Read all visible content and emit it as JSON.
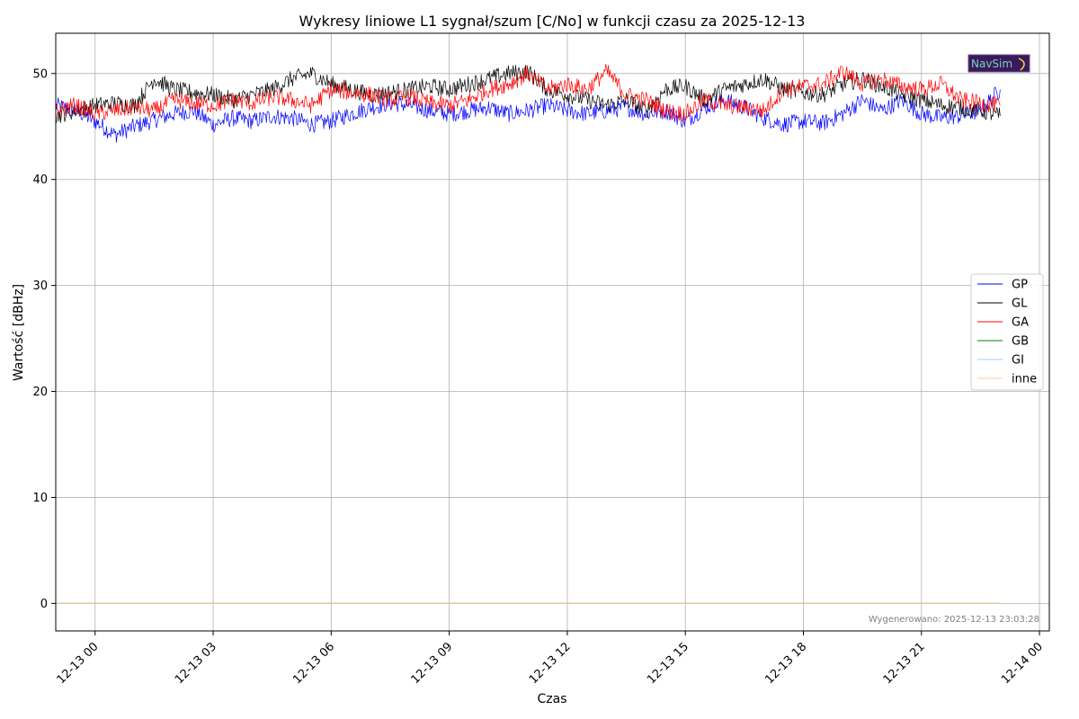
{
  "chart_data": {
    "type": "line",
    "title": "Wykresy liniowe L1 sygnał/szum [C/No] w funkcji czasu za 2025-12-13",
    "xlabel": "Czas",
    "ylabel": "Wartość [dBHz]",
    "x_ticks": [
      "12-13 00",
      "12-13 03",
      "12-13 06",
      "12-13 09",
      "12-13 12",
      "12-13 15",
      "12-13 18",
      "12-13 21",
      "12-14 00"
    ],
    "x_range": [
      "2025-12-12 23:00",
      "2025-12-14 00:15"
    ],
    "y_ticks": [
      0,
      10,
      20,
      30,
      40,
      50
    ],
    "ylim": [
      -2.6,
      53.8
    ],
    "grid": true,
    "legend_position": "center-right",
    "series": [
      {
        "name": "GP",
        "color": "#0000ff",
        "x": [
          "2025-12-12 23:00",
          "2025-12-12 23:30",
          "2025-12-13 00:00",
          "2025-12-13 00:30",
          "2025-12-13 01:00",
          "2025-12-13 01:30",
          "2025-12-13 02:00",
          "2025-12-13 02:30",
          "2025-12-13 03:00",
          "2025-12-13 03:30",
          "2025-12-13 04:00",
          "2025-12-13 04:30",
          "2025-12-13 05:00",
          "2025-12-13 05:30",
          "2025-12-13 06:00",
          "2025-12-13 06:30",
          "2025-12-13 07:00",
          "2025-12-13 07:30",
          "2025-12-13 08:00",
          "2025-12-13 08:30",
          "2025-12-13 09:00",
          "2025-12-13 09:30",
          "2025-12-13 10:00",
          "2025-12-13 10:30",
          "2025-12-13 11:00",
          "2025-12-13 11:30",
          "2025-12-13 12:00",
          "2025-12-13 12:30",
          "2025-12-13 13:00",
          "2025-12-13 13:30",
          "2025-12-13 14:00",
          "2025-12-13 14:30",
          "2025-12-13 15:00",
          "2025-12-13 15:30",
          "2025-12-13 16:00",
          "2025-12-13 16:30",
          "2025-12-13 17:00",
          "2025-12-13 17:30",
          "2025-12-13 18:00",
          "2025-12-13 18:30",
          "2025-12-13 19:00",
          "2025-12-13 19:30",
          "2025-12-13 20:00",
          "2025-12-13 20:30",
          "2025-12-13 21:00",
          "2025-12-13 21:30",
          "2025-12-13 22:00",
          "2025-12-13 22:30",
          "2025-12-13 23:00"
        ],
        "values": [
          47.0,
          46.5,
          45.5,
          44.2,
          45.0,
          45.6,
          46.2,
          46.5,
          45.2,
          45.8,
          45.5,
          46.0,
          45.8,
          45.2,
          45.5,
          46.2,
          46.8,
          47.2,
          47.0,
          46.5,
          46.2,
          46.5,
          46.8,
          46.2,
          46.5,
          47.0,
          46.5,
          46.2,
          46.5,
          46.8,
          46.2,
          46.5,
          45.5,
          46.8,
          47.5,
          46.8,
          45.8,
          45.2,
          45.5,
          45.3,
          46.2,
          47.5,
          46.5,
          47.5,
          46.2,
          45.8,
          46.0,
          46.5,
          48.5
        ]
      },
      {
        "name": "GL",
        "color": "#000000",
        "x": [
          "2025-12-12 23:00",
          "2025-12-12 23:30",
          "2025-12-13 00:00",
          "2025-12-13 00:30",
          "2025-12-13 01:00",
          "2025-12-13 01:30",
          "2025-12-13 02:00",
          "2025-12-13 02:30",
          "2025-12-13 03:00",
          "2025-12-13 03:30",
          "2025-12-13 04:00",
          "2025-12-13 04:30",
          "2025-12-13 05:00",
          "2025-12-13 05:30",
          "2025-12-13 06:00",
          "2025-12-13 06:30",
          "2025-12-13 07:00",
          "2025-12-13 07:30",
          "2025-12-13 08:00",
          "2025-12-13 08:30",
          "2025-12-13 09:00",
          "2025-12-13 09:30",
          "2025-12-13 10:00",
          "2025-12-13 10:30",
          "2025-12-13 11:00",
          "2025-12-13 11:30",
          "2025-12-13 12:00",
          "2025-12-13 12:30",
          "2025-12-13 13:00",
          "2025-12-13 13:30",
          "2025-12-13 14:00",
          "2025-12-13 14:30",
          "2025-12-13 15:00",
          "2025-12-13 15:30",
          "2025-12-13 16:00",
          "2025-12-13 16:30",
          "2025-12-13 17:00",
          "2025-12-13 17:30",
          "2025-12-13 18:00",
          "2025-12-13 18:30",
          "2025-12-13 19:00",
          "2025-12-13 19:30",
          "2025-12-13 20:00",
          "2025-12-13 20:30",
          "2025-12-13 21:00",
          "2025-12-13 21:30",
          "2025-12-13 22:00",
          "2025-12-13 22:30",
          "2025-12-13 23:00"
        ],
        "values": [
          46.0,
          46.5,
          47.0,
          47.2,
          47.0,
          49.5,
          48.5,
          48.2,
          48.0,
          47.5,
          48.0,
          48.5,
          49.5,
          50.0,
          49.0,
          48.5,
          48.0,
          48.2,
          48.5,
          48.8,
          48.5,
          49.0,
          49.5,
          50.0,
          50.2,
          48.5,
          48.0,
          47.5,
          47.0,
          47.5,
          46.5,
          48.5,
          48.8,
          47.5,
          48.5,
          49.0,
          49.5,
          48.5,
          48.2,
          48.0,
          49.0,
          49.5,
          48.8,
          48.0,
          47.5,
          47.0,
          46.8,
          46.5,
          46.0
        ]
      },
      {
        "name": "GA",
        "color": "#ff0000",
        "x": [
          "2025-12-12 23:00",
          "2025-12-12 23:30",
          "2025-12-13 00:00",
          "2025-12-13 00:30",
          "2025-12-13 01:00",
          "2025-12-13 01:30",
          "2025-12-13 02:00",
          "2025-12-13 02:30",
          "2025-12-13 03:00",
          "2025-12-13 03:30",
          "2025-12-13 04:00",
          "2025-12-13 04:30",
          "2025-12-13 05:00",
          "2025-12-13 05:30",
          "2025-12-13 06:00",
          "2025-12-13 06:30",
          "2025-12-13 07:00",
          "2025-12-13 07:30",
          "2025-12-13 08:00",
          "2025-12-13 08:30",
          "2025-12-13 09:00",
          "2025-12-13 09:30",
          "2025-12-13 10:00",
          "2025-12-13 10:30",
          "2025-12-13 11:00",
          "2025-12-13 11:30",
          "2025-12-13 12:00",
          "2025-12-13 12:30",
          "2025-12-13 13:00",
          "2025-12-13 13:30",
          "2025-12-13 14:00",
          "2025-12-13 14:30",
          "2025-12-13 15:00",
          "2025-12-13 15:30",
          "2025-12-13 16:00",
          "2025-12-13 16:30",
          "2025-12-13 17:00",
          "2025-12-13 17:30",
          "2025-12-13 18:00",
          "2025-12-13 18:30",
          "2025-12-13 19:00",
          "2025-12-13 19:30",
          "2025-12-13 20:00",
          "2025-12-13 20:30",
          "2025-12-13 21:00",
          "2025-12-13 21:30",
          "2025-12-13 22:00",
          "2025-12-13 22:30",
          "2025-12-13 23:00"
        ],
        "values": [
          46.5,
          47.0,
          46.2,
          46.5,
          46.8,
          46.5,
          47.5,
          47.2,
          47.0,
          47.5,
          47.2,
          47.8,
          47.5,
          47.0,
          48.5,
          48.2,
          48.0,
          47.5,
          47.8,
          47.2,
          47.0,
          47.5,
          48.5,
          49.0,
          50.0,
          48.5,
          49.0,
          48.5,
          50.2,
          48.0,
          47.5,
          46.5,
          46.2,
          47.5,
          47.0,
          46.8,
          46.5,
          48.5,
          48.8,
          49.0,
          50.2,
          49.0,
          49.5,
          48.8,
          48.5,
          49.0,
          47.5,
          47.2,
          47.0
        ]
      },
      {
        "name": "GB",
        "color": "#008000",
        "x": [
          "2025-12-12 23:00",
          "2025-12-13 23:00"
        ],
        "values": [
          0,
          0
        ]
      },
      {
        "name": "GI",
        "color": "#a6c8ff",
        "x": [
          "2025-12-12 23:00",
          "2025-12-13 23:00"
        ],
        "values": [
          0,
          0
        ]
      },
      {
        "name": "inne",
        "color": "#ffcf9e",
        "x": [
          "2025-12-12 23:00",
          "2025-12-13 23:00"
        ],
        "values": [
          0,
          0
        ]
      }
    ],
    "annotations": {
      "footer": "Wygenerowano: 2025-12-13 23:03:28",
      "logo": "NavSim"
    }
  }
}
